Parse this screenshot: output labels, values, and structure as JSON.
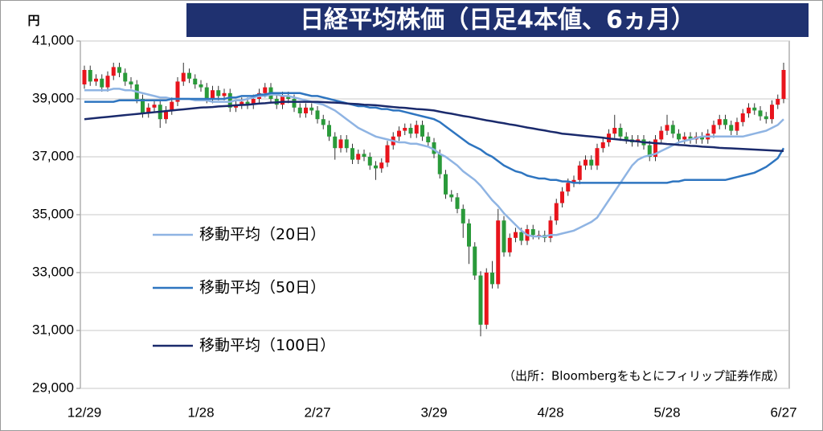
{
  "chart_data": {
    "type": "candlestick",
    "title": "日経平均株価（日足4本値、6ヵ月）",
    "y_unit": "円",
    "source_note": "（出所：Bloombergをもとにフィリップ証券作成）",
    "up_color": "#e8141c",
    "down_color": "#2a9a3a",
    "grid": true,
    "ylim": [
      29000,
      41000
    ],
    "yticks": [
      {
        "value": 29000,
        "label": "29,000"
      },
      {
        "value": 31000,
        "label": "31,000"
      },
      {
        "value": 33000,
        "label": "33,000"
      },
      {
        "value": 35000,
        "label": "35,000"
      },
      {
        "value": 37000,
        "label": "37,000"
      },
      {
        "value": 39000,
        "label": "39,000"
      },
      {
        "value": 41000,
        "label": "41,000"
      }
    ],
    "categories": [
      "12/29",
      null,
      null,
      null,
      null,
      null,
      null,
      null,
      null,
      null,
      null,
      null,
      null,
      null,
      null,
      null,
      null,
      null,
      null,
      null,
      "1/28",
      null,
      null,
      null,
      null,
      null,
      null,
      null,
      null,
      null,
      null,
      null,
      null,
      null,
      null,
      null,
      null,
      null,
      null,
      null,
      "2/27",
      null,
      null,
      null,
      null,
      null,
      null,
      null,
      null,
      null,
      null,
      null,
      null,
      null,
      null,
      null,
      null,
      null,
      null,
      null,
      "3/29",
      null,
      null,
      null,
      null,
      null,
      null,
      null,
      null,
      null,
      null,
      null,
      null,
      null,
      null,
      null,
      null,
      null,
      null,
      null,
      "4/28",
      null,
      null,
      null,
      null,
      null,
      null,
      null,
      null,
      null,
      null,
      null,
      null,
      null,
      null,
      null,
      null,
      null,
      null,
      null,
      "5/28",
      null,
      null,
      null,
      null,
      null,
      null,
      null,
      null,
      null,
      null,
      null,
      null,
      null,
      null,
      null,
      null,
      null,
      null,
      null,
      "6/27"
    ],
    "candles": {
      "open": [
        39500,
        40000,
        39600,
        39700,
        39400,
        39800,
        40100,
        39900,
        39600,
        39500,
        39000,
        38500,
        38700,
        38800,
        38300,
        38600,
        38900,
        39600,
        39900,
        39700,
        39500,
        39400,
        39000,
        39300,
        39100,
        39200,
        38700,
        38800,
        38900,
        38800,
        39000,
        39200,
        39400,
        39000,
        38800,
        39100,
        39000,
        38700,
        38500,
        38700,
        38600,
        38300,
        38100,
        37700,
        37300,
        37600,
        37300,
        36900,
        37100,
        37000,
        36700,
        36600,
        36800,
        37400,
        37700,
        37900,
        38000,
        37800,
        38100,
        37700,
        37500,
        37100,
        36400,
        35700,
        35600,
        35200,
        34700,
        33900,
        32900,
        31200,
        33000,
        32600,
        34800,
        33700,
        34200,
        34400,
        34100,
        34500,
        34300,
        34300,
        34200,
        34800,
        35400,
        35800,
        36100,
        36200,
        36700,
        36900,
        36700,
        37300,
        37500,
        37800,
        38000,
        37700,
        37600,
        37500,
        37600,
        37400,
        37000,
        37600,
        37900,
        38100,
        37800,
        37600,
        37700,
        37600,
        37700,
        37600,
        37800,
        38100,
        38300,
        38100,
        37900,
        38200,
        38500,
        38700,
        38600,
        38400,
        38300,
        38800,
        39000
      ],
      "high": [
        40150,
        40150,
        39850,
        39850,
        39950,
        40250,
        40250,
        40050,
        39750,
        39650,
        39150,
        38850,
        38950,
        38950,
        38750,
        39050,
        39750,
        40250,
        40050,
        39850,
        39650,
        39550,
        39450,
        39450,
        39350,
        39350,
        38950,
        39050,
        39050,
        39150,
        39350,
        39550,
        39550,
        39150,
        39250,
        39250,
        39150,
        38850,
        38850,
        38850,
        38750,
        38450,
        38250,
        37850,
        37750,
        37750,
        37450,
        37250,
        37250,
        37150,
        36850,
        36950,
        37550,
        37850,
        38050,
        38150,
        38150,
        38250,
        38250,
        37850,
        37650,
        37250,
        36550,
        35850,
        35750,
        35350,
        34850,
        34050,
        33050,
        33150,
        33400,
        35200,
        34950,
        34350,
        34550,
        34550,
        34650,
        34650,
        34450,
        34450,
        34950,
        35550,
        35950,
        36250,
        36350,
        36850,
        37050,
        37050,
        37450,
        37650,
        37950,
        38450,
        38150,
        37850,
        37750,
        37750,
        37750,
        37550,
        37750,
        38050,
        38450,
        38250,
        37950,
        37850,
        37850,
        37850,
        37850,
        37950,
        38250,
        38450,
        38450,
        38250,
        38350,
        38650,
        38850,
        38850,
        38750,
        38550,
        38950,
        39150,
        40250
      ],
      "low": [
        39350,
        39450,
        39450,
        39250,
        39250,
        39650,
        39750,
        39450,
        39350,
        38850,
        38350,
        38350,
        38550,
        38000,
        38150,
        38450,
        38750,
        39450,
        39550,
        39350,
        39250,
        38850,
        38850,
        38950,
        38950,
        38550,
        38550,
        38650,
        38650,
        38650,
        38850,
        39050,
        38850,
        38650,
        38650,
        38850,
        38550,
        38350,
        38350,
        38450,
        38150,
        37950,
        37550,
        36900,
        37150,
        37150,
        36750,
        36750,
        36850,
        36550,
        36200,
        36450,
        36650,
        37250,
        37550,
        37750,
        37650,
        37650,
        37550,
        37350,
        36950,
        36250,
        35550,
        35450,
        35050,
        34200,
        33300,
        32750,
        30800,
        31050,
        32450,
        32450,
        33550,
        33550,
        34050,
        33950,
        33950,
        34150,
        34150,
        34050,
        34050,
        34650,
        35250,
        35650,
        35950,
        36050,
        36550,
        36550,
        36550,
        37150,
        37350,
        37650,
        37550,
        37450,
        37350,
        37350,
        37250,
        36850,
        36850,
        37450,
        37750,
        37650,
        37450,
        37450,
        37450,
        37450,
        37450,
        37450,
        37650,
        37950,
        37950,
        37750,
        37750,
        38050,
        38350,
        38450,
        38250,
        38150,
        38150,
        38650,
        38850
      ],
      "close": [
        40000,
        39600,
        39700,
        39400,
        39800,
        40100,
        39900,
        39600,
        39500,
        39000,
        38500,
        38700,
        38800,
        38300,
        38600,
        38900,
        39600,
        39900,
        39700,
        39500,
        39400,
        39000,
        39300,
        39100,
        39200,
        38700,
        38800,
        38900,
        38800,
        39000,
        39200,
        39400,
        39000,
        38800,
        39100,
        39000,
        38700,
        38500,
        38700,
        38600,
        38300,
        38100,
        37700,
        37300,
        37600,
        37300,
        36900,
        37100,
        37000,
        36700,
        36600,
        36800,
        37400,
        37700,
        37900,
        38000,
        37800,
        38100,
        37700,
        37500,
        37100,
        36400,
        35700,
        35600,
        35200,
        34700,
        33900,
        32900,
        31200,
        33000,
        32600,
        34800,
        33700,
        34200,
        34400,
        34100,
        34500,
        34300,
        34300,
        34200,
        34800,
        35400,
        35800,
        36100,
        36200,
        36700,
        36900,
        36700,
        37300,
        37500,
        37800,
        38000,
        37700,
        37600,
        37500,
        37600,
        37400,
        37000,
        37600,
        37900,
        38100,
        37800,
        37600,
        37700,
        37600,
        37700,
        37600,
        37800,
        38100,
        38300,
        38100,
        37900,
        38200,
        38500,
        38700,
        38600,
        38400,
        38300,
        38800,
        39000,
        40000
      ]
    },
    "series": [
      {
        "name": "移動平均（20日）",
        "color": "#8fb4e3",
        "values": [
          39300,
          39300,
          39300,
          39300,
          39300,
          39350,
          39350,
          39300,
          39300,
          39250,
          39200,
          39150,
          39100,
          39050,
          39050,
          39000,
          39000,
          39000,
          39000,
          38950,
          38950,
          38950,
          38900,
          38900,
          38900,
          38900,
          38950,
          38950,
          39000,
          39050,
          39100,
          39100,
          39150,
          39150,
          39100,
          39100,
          39050,
          39000,
          38950,
          38900,
          38850,
          38800,
          38700,
          38600,
          38450,
          38300,
          38150,
          38000,
          37900,
          37800,
          37700,
          37650,
          37600,
          37550,
          37500,
          37500,
          37450,
          37450,
          37400,
          37350,
          37250,
          37100,
          37000,
          36850,
          36700,
          36500,
          36350,
          36200,
          36000,
          35750,
          35500,
          35300,
          35050,
          34850,
          34650,
          34450,
          34300,
          34250,
          34250,
          34250,
          34300,
          34300,
          34350,
          34400,
          34450,
          34550,
          34650,
          34750,
          34900,
          35200,
          35500,
          35800,
          36100,
          36400,
          36700,
          36900,
          37000,
          37050,
          37100,
          37200,
          37300,
          37400,
          37500,
          37550,
          37600,
          37650,
          37700,
          37700,
          37700,
          37700,
          37700,
          37700,
          37700,
          37700,
          37750,
          37800,
          37850,
          37900,
          38000,
          38100,
          38300
        ]
      },
      {
        "name": "移動平均（50日）",
        "color": "#2e75c0",
        "values": [
          38900,
          38900,
          38900,
          38900,
          38900,
          38900,
          38950,
          38950,
          38950,
          38950,
          38950,
          38950,
          38950,
          38950,
          38950,
          39000,
          39000,
          39000,
          39000,
          39000,
          39000,
          39000,
          39000,
          39000,
          39000,
          39050,
          39050,
          39100,
          39100,
          39100,
          39150,
          39150,
          39200,
          39200,
          39200,
          39200,
          39200,
          39200,
          39150,
          39100,
          39100,
          39050,
          39000,
          38950,
          38900,
          38850,
          38800,
          38750,
          38750,
          38700,
          38700,
          38650,
          38650,
          38600,
          38600,
          38550,
          38500,
          38450,
          38400,
          38350,
          38300,
          38200,
          38050,
          37900,
          37750,
          37600,
          37450,
          37350,
          37250,
          37100,
          37000,
          36850,
          36700,
          36600,
          36500,
          36450,
          36350,
          36300,
          36250,
          36250,
          36200,
          36200,
          36150,
          36150,
          36100,
          36100,
          36100,
          36100,
          36100,
          36100,
          36100,
          36100,
          36100,
          36100,
          36100,
          36100,
          36100,
          36100,
          36100,
          36100,
          36100,
          36150,
          36150,
          36200,
          36200,
          36200,
          36200,
          36200,
          36200,
          36200,
          36200,
          36250,
          36300,
          36350,
          36400,
          36450,
          36550,
          36650,
          36800,
          36950,
          37300
        ]
      },
      {
        "name": "移動平均（100日）",
        "color": "#1a2a6c",
        "values": [
          38300,
          38320,
          38340,
          38360,
          38380,
          38400,
          38420,
          38440,
          38460,
          38480,
          38500,
          38520,
          38540,
          38560,
          38580,
          38600,
          38620,
          38640,
          38660,
          38680,
          38700,
          38710,
          38720,
          38740,
          38750,
          38760,
          38780,
          38790,
          38800,
          38820,
          38840,
          38850,
          38870,
          38880,
          38900,
          38900,
          38900,
          38900,
          38900,
          38900,
          38900,
          38890,
          38880,
          38870,
          38860,
          38840,
          38830,
          38820,
          38800,
          38790,
          38780,
          38760,
          38740,
          38720,
          38700,
          38690,
          38670,
          38650,
          38640,
          38620,
          38600,
          38560,
          38520,
          38490,
          38450,
          38410,
          38380,
          38340,
          38300,
          38260,
          38230,
          38190,
          38160,
          38120,
          38090,
          38050,
          38010,
          37980,
          37940,
          37910,
          37870,
          37840,
          37800,
          37780,
          37760,
          37740,
          37720,
          37700,
          37680,
          37660,
          37630,
          37610,
          37590,
          37570,
          37550,
          37530,
          37500,
          37490,
          37470,
          37460,
          37440,
          37430,
          37410,
          37400,
          37380,
          37370,
          37350,
          37340,
          37330,
          37310,
          37300,
          37290,
          37280,
          37270,
          37260,
          37250,
          37240,
          37230,
          37220,
          37210,
          37200
        ]
      }
    ]
  }
}
